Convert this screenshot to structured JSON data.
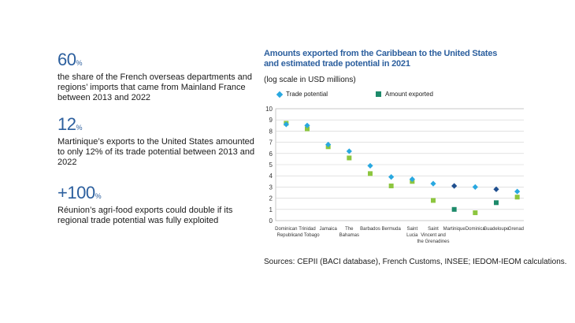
{
  "stats": [
    {
      "value": "60",
      "unit": "%",
      "text": "the share of the French overseas departments and regions’ imports that came from Mainland France between 2013 and 2022"
    },
    {
      "value": "12",
      "unit": "%",
      "text": "Martinique’s exports to the United States amounted to only 12% of its trade potential between 2013 and 2022"
    },
    {
      "value": "+100",
      "unit": "%",
      "text": "Réunion’s agri-food exports could double if its regional trade potential was fully exploited"
    }
  ],
  "sources": "Sources: CEPII (BACI database), French Customs, INSEE; IEDOM-IEOM calculations.",
  "colors": {
    "title": "#2c5f9e",
    "potential": "#29a8e0",
    "potential_dark": "#1f4f8f",
    "exported_light": "#8dc63f",
    "exported_dark": "#1d8a6a",
    "grid": "#d0d0d0"
  },
  "chart_data": {
    "type": "scatter",
    "title": "Amounts exported from the Caribbean to the United States and estimated trade potential in 2021",
    "subtitle": "(log scale in USD millions)",
    "legend": [
      {
        "name": "Trade potential",
        "marker": "diamond"
      },
      {
        "name": "Amount exported",
        "marker": "square"
      }
    ],
    "categories": [
      [
        "Dominican",
        "Republic"
      ],
      [
        "Trinidad",
        "and Tobago"
      ],
      [
        "Jamaica"
      ],
      [
        "The",
        "Bahamas"
      ],
      [
        "Barbados"
      ],
      [
        "Bermuda"
      ],
      [
        "Saint",
        "Lucia"
      ],
      [
        "Saint",
        "Vincent and",
        "the Grenadines"
      ],
      [
        "Martinique"
      ],
      [
        "Dominica"
      ],
      [
        "Guadeloupe"
      ],
      [
        "Grenada"
      ]
    ],
    "french_dept_flags": [
      false,
      false,
      false,
      false,
      false,
      false,
      false,
      false,
      true,
      false,
      true,
      false
    ],
    "series": [
      {
        "name": "Trade potential",
        "values": [
          8.6,
          8.5,
          6.8,
          6.2,
          4.9,
          3.9,
          3.7,
          3.3,
          3.1,
          3.0,
          2.8,
          2.6
        ]
      },
      {
        "name": "Amount exported",
        "values": [
          8.7,
          8.2,
          6.6,
          5.6,
          4.2,
          3.1,
          3.5,
          1.8,
          1.0,
          0.7,
          1.6,
          2.1
        ]
      }
    ],
    "ylim": [
      0,
      10
    ],
    "yticks": [
      0,
      1,
      2,
      3,
      4,
      5,
      6,
      7,
      8,
      9,
      10
    ],
    "grid": true
  }
}
